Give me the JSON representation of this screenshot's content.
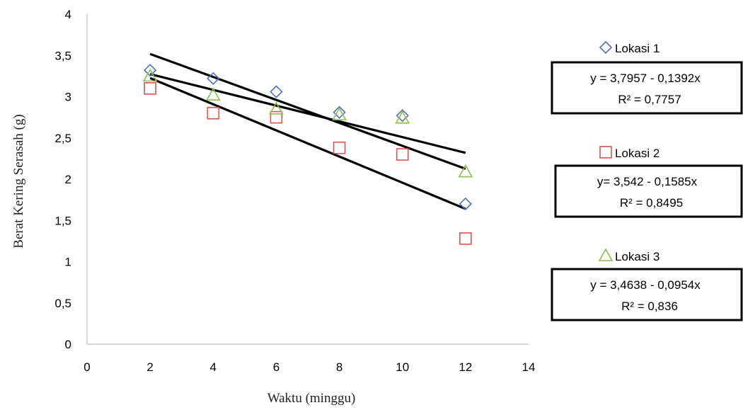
{
  "chart_data": {
    "type": "scatter",
    "xlabel": "Waktu (minggu)",
    "ylabel": "Berat Kering Serasah (g)",
    "xlim": [
      0,
      14
    ],
    "ylim": [
      0,
      4
    ],
    "x_ticks": [
      "0",
      "2",
      "4",
      "6",
      "8",
      "10",
      "12",
      "14"
    ],
    "y_ticks": [
      "0",
      "0,5",
      "1",
      "1,5",
      "2",
      "2,5",
      "3",
      "3,5",
      "4"
    ],
    "grid": false,
    "legend_position": "right",
    "series": [
      {
        "name": "Lokasi 1",
        "marker": "diamond",
        "color": "#4a72c4",
        "x": [
          2,
          4,
          6,
          8,
          10,
          12
        ],
        "y": [
          3.32,
          3.22,
          3.06,
          2.81,
          2.77,
          1.7
        ],
        "equation": "y = 3,7957 - 0,1392x",
        "r2": "R² = 0,7757",
        "trend": {
          "intercept": 3.7957,
          "slope": -0.1392
        }
      },
      {
        "name": "Lokasi 2",
        "marker": "square",
        "color": "#d9534f",
        "x": [
          2,
          4,
          6,
          8,
          10,
          12
        ],
        "y": [
          3.1,
          2.8,
          2.75,
          2.38,
          2.3,
          1.28
        ],
        "equation": "y= 3,542 - 0,1585x",
        "r2": "R² = 0,8495",
        "trend": {
          "intercept": 3.542,
          "slope": -0.1585
        }
      },
      {
        "name": "Lokasi 3",
        "marker": "triangle",
        "color": "#8cbf4a",
        "x": [
          2,
          4,
          6,
          8,
          10,
          12
        ],
        "y": [
          3.25,
          3.02,
          2.85,
          2.78,
          2.74,
          2.09
        ],
        "equation": "y = 3,4638 - 0,0954x",
        "r2": "R² = 0,836",
        "trend": {
          "intercept": 3.4638,
          "slope": -0.0954
        }
      }
    ]
  }
}
